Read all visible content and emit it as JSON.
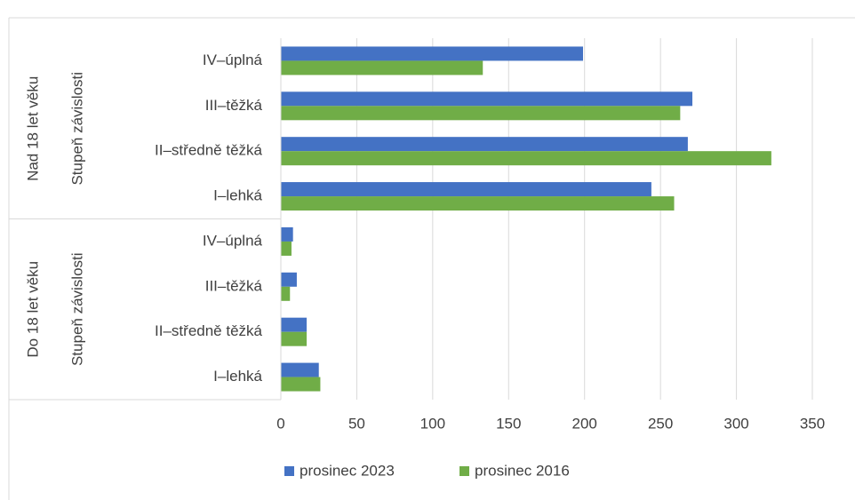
{
  "chart_data": {
    "type": "bar",
    "orientation": "horizontal",
    "groups": [
      {
        "label": "Nad 18 let věku",
        "sublabel": "Stupeň závislosti",
        "categories": [
          "IV–úplná",
          "III–těžká",
          "II–středně těžká",
          "I–lehká"
        ]
      },
      {
        "label": "Do 18 let věku",
        "sublabel": "Stupeň závislosti",
        "categories": [
          "IV–úplná",
          "III–těžká",
          "II–středně těžká",
          "I–lehká"
        ]
      }
    ],
    "series": [
      {
        "name": "prosinec 2023",
        "color": "#4472c4",
        "values": [
          199,
          271,
          268,
          244,
          8,
          10.5,
          17,
          25
        ]
      },
      {
        "name": "prosinec 2016",
        "color": "#70ad47",
        "values": [
          133,
          263,
          323,
          259,
          7,
          6,
          17,
          26
        ]
      }
    ],
    "xlim": [
      0,
      350
    ],
    "xticks": [
      0,
      50,
      100,
      150,
      200,
      250,
      300,
      350
    ],
    "grid": true,
    "legend": "bottom"
  }
}
